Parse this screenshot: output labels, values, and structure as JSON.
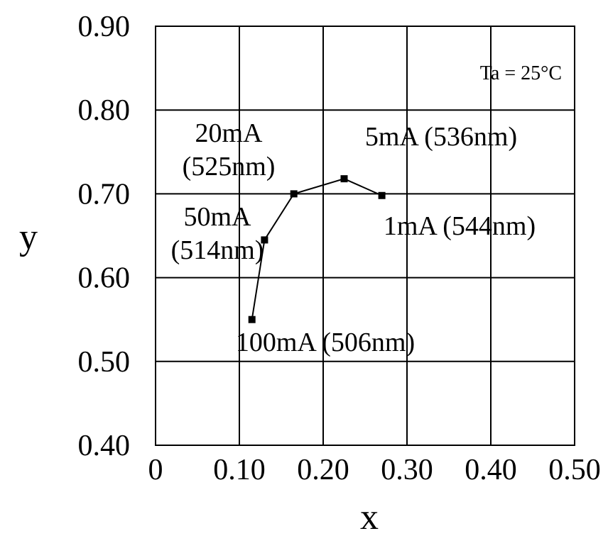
{
  "chart_data": {
    "type": "line",
    "xlabel": "x",
    "ylabel": "y",
    "xlim": [
      0,
      0.5
    ],
    "ylim": [
      0.4,
      0.9
    ],
    "x_ticks": [
      "0",
      "0.10",
      "0.20",
      "0.30",
      "0.40",
      "0.50"
    ],
    "y_ticks": [
      "0.40",
      "0.50",
      "0.60",
      "0.70",
      "0.80",
      "0.90"
    ],
    "grid": true,
    "series": [
      {
        "points": [
          {
            "x": 0.115,
            "y": 0.55
          },
          {
            "x": 0.13,
            "y": 0.645
          },
          {
            "x": 0.165,
            "y": 0.7
          },
          {
            "x": 0.225,
            "y": 0.718
          },
          {
            "x": 0.27,
            "y": 0.698
          }
        ]
      }
    ],
    "point_labels": [
      {
        "lines": [
          "100mA (506nm)"
        ],
        "anchor_point": 0
      },
      {
        "lines": [
          "50mA",
          "(514nm)"
        ],
        "anchor_point": 1
      },
      {
        "lines": [
          "20mA",
          "(525nm)"
        ],
        "anchor_point": 2
      },
      {
        "lines": [
          "5mA (536nm)"
        ],
        "anchor_point": 3
      },
      {
        "lines": [
          "1mA (544nm)"
        ],
        "anchor_point": 4
      }
    ],
    "condition_label": "Ta = 25°C",
    "colors": {
      "line": "#000000",
      "grid": "#000000",
      "background": "#ffffff"
    }
  }
}
